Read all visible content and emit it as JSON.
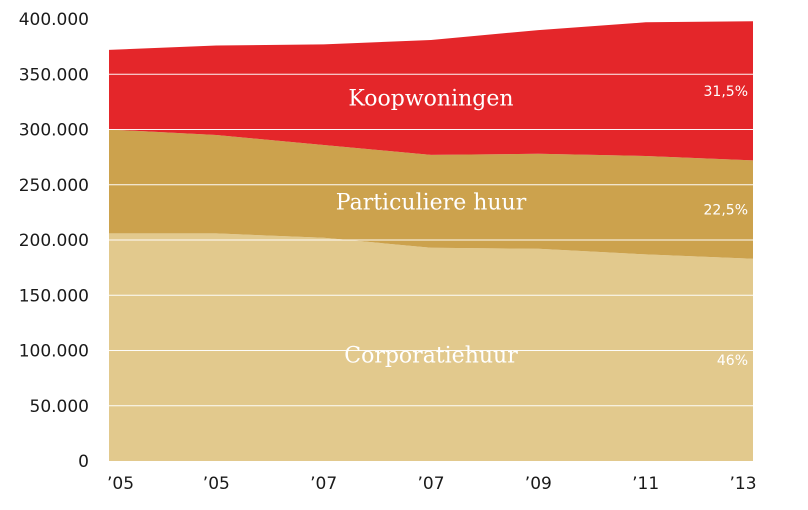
{
  "chart_data": {
    "type": "area",
    "stacked": true,
    "categories": [
      "’05",
      "’05",
      "’07",
      "’07",
      "’09",
      "’11",
      "’13"
    ],
    "y_ticks": [
      "0",
      "50.000",
      "100.000",
      "150.000",
      "200.000",
      "250.000",
      "300.000",
      "350.000",
      "400.000"
    ],
    "ylim": [
      0,
      400000
    ],
    "grid": true,
    "series": [
      {
        "name": "Corporatiehuur",
        "share_label": "46%",
        "color": "#e2c98d",
        "values": [
          206000,
          206000,
          202000,
          193000,
          192000,
          187000,
          183000
        ]
      },
      {
        "name": "Particuliere huur",
        "share_label": "22,5%",
        "color": "#cca24d",
        "values": [
          94000,
          89000,
          84000,
          84000,
          86000,
          89000,
          89000
        ]
      },
      {
        "name": "Koopwoningen",
        "share_label": "31,5%",
        "color": "#e4262a",
        "values": [
          72000,
          81000,
          91000,
          104000,
          112000,
          121000,
          126000
        ]
      }
    ]
  }
}
